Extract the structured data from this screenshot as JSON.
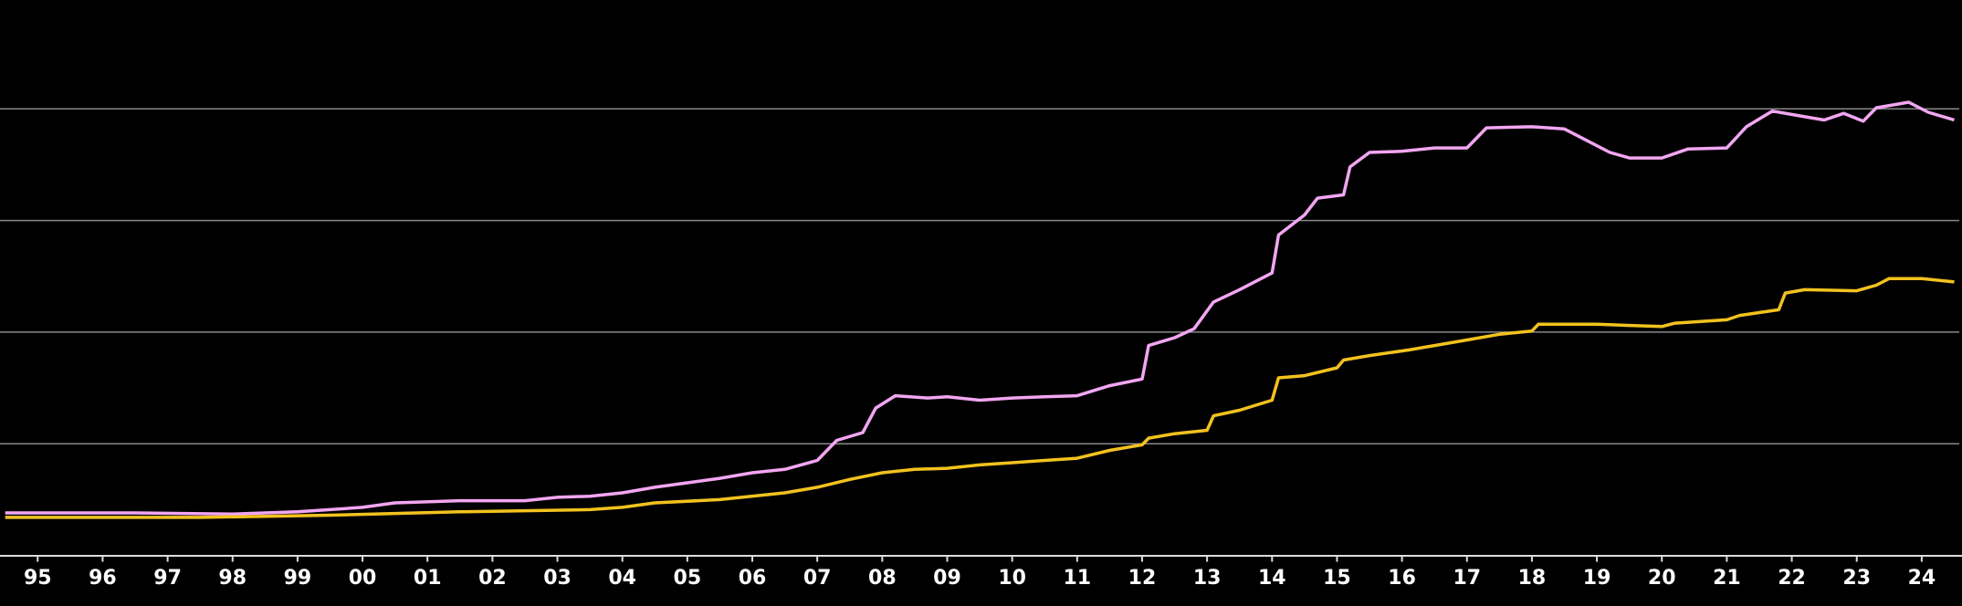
{
  "chart_data": {
    "type": "line",
    "xlim": [
      1994.92,
      2025.12
    ],
    "ylim": [
      0,
      5
    ],
    "yticks": [
      1,
      2,
      3,
      4
    ],
    "grid": true,
    "xticks": [
      {
        "value": 1995.5,
        "label": "95"
      },
      {
        "value": 1996.5,
        "label": "96"
      },
      {
        "value": 1997.5,
        "label": "97"
      },
      {
        "value": 1998.5,
        "label": "98"
      },
      {
        "value": 1999.5,
        "label": "99"
      },
      {
        "value": 2000.5,
        "label": "00"
      },
      {
        "value": 2001.5,
        "label": "01"
      },
      {
        "value": 2002.5,
        "label": "02"
      },
      {
        "value": 2003.5,
        "label": "03"
      },
      {
        "value": 2004.5,
        "label": "04"
      },
      {
        "value": 2005.5,
        "label": "05"
      },
      {
        "value": 2006.5,
        "label": "06"
      },
      {
        "value": 2007.5,
        "label": "07"
      },
      {
        "value": 2008.5,
        "label": "08"
      },
      {
        "value": 2009.5,
        "label": "09"
      },
      {
        "value": 2010.5,
        "label": "10"
      },
      {
        "value": 2011.5,
        "label": "11"
      },
      {
        "value": 2012.5,
        "label": "12"
      },
      {
        "value": 2013.5,
        "label": "13"
      },
      {
        "value": 2014.5,
        "label": "14"
      },
      {
        "value": 2015.5,
        "label": "15"
      },
      {
        "value": 2016.5,
        "label": "16"
      },
      {
        "value": 2017.5,
        "label": "17"
      },
      {
        "value": 2018.5,
        "label": "18"
      },
      {
        "value": 2019.5,
        "label": "19"
      },
      {
        "value": 2020.5,
        "label": "20"
      },
      {
        "value": 2021.5,
        "label": "21"
      },
      {
        "value": 2022.5,
        "label": "22"
      },
      {
        "value": 2023.5,
        "label": "23"
      },
      {
        "value": 2024.5,
        "label": "24"
      }
    ],
    "series": [
      {
        "color": "#f2a6f2",
        "x": [
          1995.0,
          1997.0,
          1998.5,
          1999.5,
          2000.0,
          2000.5,
          2001.0,
          2002.0,
          2003.0,
          2003.5,
          2004.0,
          2004.5,
          2005.0,
          2005.5,
          2006.0,
          2006.5,
          2007.0,
          2007.5,
          2007.8,
          2008.2,
          2008.4,
          2008.7,
          2009.2,
          2009.5,
          2010.0,
          2010.5,
          2011.0,
          2011.5,
          2012.0,
          2012.5,
          2012.6,
          2013.0,
          2013.3,
          2013.6,
          2014.0,
          2014.5,
          2014.6,
          2015.0,
          2015.2,
          2015.6,
          2015.7,
          2016.0,
          2016.5,
          2017.0,
          2017.5,
          2017.8,
          2018.5,
          2019.0,
          2019.3,
          2019.7,
          2020.0,
          2020.5,
          2020.9,
          2021.5,
          2021.8,
          2022.2,
          2022.7,
          2023.0,
          2023.3,
          2023.6,
          2023.8,
          2024.3,
          2024.6,
          2025.0
        ],
        "values": [
          0.38,
          0.38,
          0.37,
          0.39,
          0.41,
          0.43,
          0.47,
          0.49,
          0.49,
          0.52,
          0.53,
          0.56,
          0.61,
          0.65,
          0.69,
          0.74,
          0.77,
          0.85,
          1.03,
          1.1,
          1.32,
          1.43,
          1.41,
          1.42,
          1.39,
          1.41,
          1.42,
          1.43,
          1.52,
          1.58,
          1.88,
          1.95,
          2.03,
          2.27,
          2.38,
          2.53,
          2.87,
          3.05,
          3.2,
          3.23,
          3.48,
          3.61,
          3.62,
          3.65,
          3.65,
          3.83,
          3.84,
          3.82,
          3.73,
          3.61,
          3.56,
          3.56,
          3.64,
          3.65,
          3.84,
          3.98,
          3.93,
          3.9,
          3.96,
          3.89,
          4.01,
          4.06,
          3.97,
          3.9
        ]
      },
      {
        "color": "#f2c21e",
        "x": [
          1995.0,
          1998.0,
          2000.0,
          2002.0,
          2004.0,
          2004.5,
          2005.0,
          2006.0,
          2007.0,
          2007.5,
          2008.0,
          2008.5,
          2009.0,
          2009.5,
          2010.0,
          2010.5,
          2011.0,
          2011.5,
          2012.0,
          2012.5,
          2012.6,
          2013.0,
          2013.5,
          2013.6,
          2014.0,
          2014.5,
          2014.6,
          2015.0,
          2015.5,
          2015.6,
          2016.0,
          2016.6,
          2017.0,
          2017.5,
          2018.0,
          2018.5,
          2018.6,
          2019.5,
          2020.5,
          2020.7,
          2021.5,
          2021.7,
          2022.3,
          2022.4,
          2022.7,
          2023.5,
          2023.8,
          2024.0,
          2024.5,
          2025.0
        ],
        "values": [
          0.34,
          0.34,
          0.36,
          0.39,
          0.41,
          0.43,
          0.47,
          0.5,
          0.56,
          0.61,
          0.68,
          0.74,
          0.77,
          0.78,
          0.81,
          0.83,
          0.85,
          0.87,
          0.94,
          0.99,
          1.05,
          1.09,
          1.12,
          1.25,
          1.3,
          1.39,
          1.59,
          1.61,
          1.68,
          1.75,
          1.79,
          1.84,
          1.88,
          1.93,
          1.98,
          2.01,
          2.07,
          2.07,
          2.05,
          2.08,
          2.11,
          2.15,
          2.2,
          2.35,
          2.38,
          2.37,
          2.42,
          2.48,
          2.48,
          2.45
        ]
      }
    ]
  }
}
